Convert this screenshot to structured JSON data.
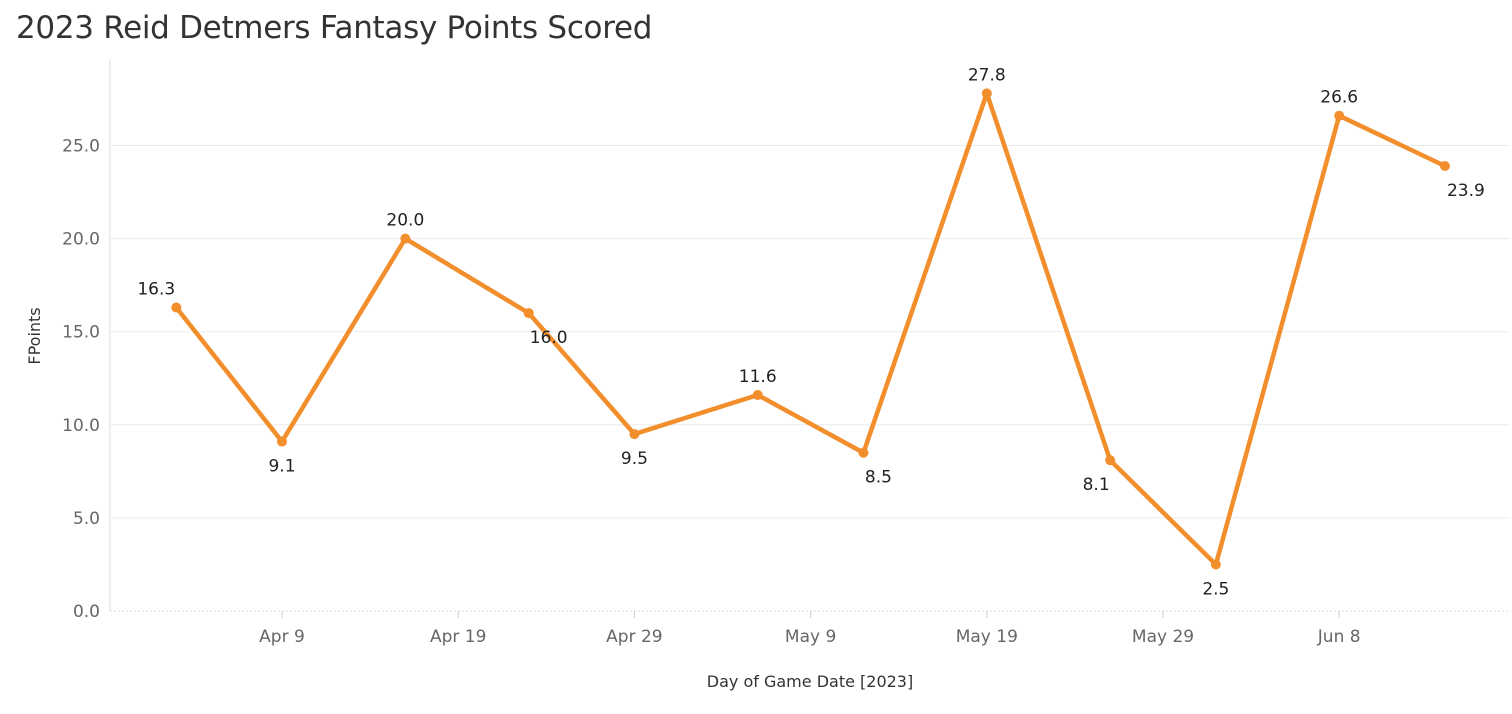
{
  "chart_data": {
    "type": "line",
    "title": "2023 Reid Detmers Fantasy Points Scored",
    "xlabel": "Day of Game Date [2023]",
    "ylabel": "FPoints",
    "ylim": [
      0,
      28.5
    ],
    "yticks": [
      0,
      5,
      10,
      15,
      20,
      25
    ],
    "ytick_labels": [
      "0.0",
      "5.0",
      "10.0",
      "15.0",
      "20.0",
      "25.0"
    ],
    "xticks": [
      "2023-04-09",
      "2023-04-19",
      "2023-04-29",
      "2023-05-09",
      "2023-05-19",
      "2023-05-29",
      "2023-06-08"
    ],
    "xtick_labels": [
      "Apr 9",
      "Apr 19",
      "Apr 29",
      "May 9",
      "May 19",
      "May 29",
      "Jun 8"
    ],
    "grid": true,
    "colors": {
      "line": "#F28E2B",
      "grid": "#EBEBEB",
      "axis": "#DDDDDD"
    },
    "series": [
      {
        "x": [
          "2023-04-03",
          "2023-04-09",
          "2023-04-16",
          "2023-04-23",
          "2023-04-29",
          "2023-05-06",
          "2023-05-12",
          "2023-05-19",
          "2023-05-26",
          "2023-06-01",
          "2023-06-08",
          "2023-06-14"
        ],
        "values": [
          16.3,
          9.1,
          20.0,
          16.0,
          9.5,
          11.6,
          8.5,
          27.8,
          8.1,
          2.5,
          26.6,
          23.9
        ],
        "labels": [
          "16.3",
          "9.1",
          "20.0",
          "16.0",
          "9.5",
          "11.6",
          "8.5",
          "27.8",
          "8.1",
          "2.5",
          "26.6",
          "23.9"
        ]
      }
    ]
  }
}
